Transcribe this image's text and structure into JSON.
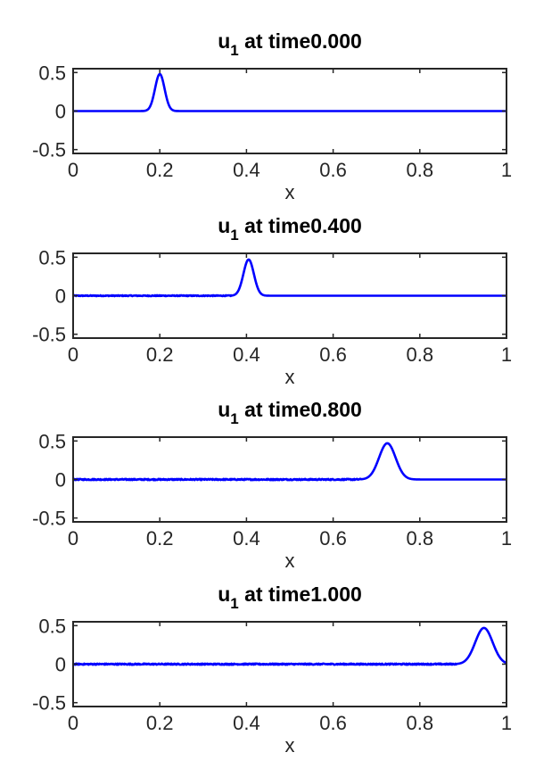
{
  "chart_data": [
    {
      "type": "line",
      "title_base": "u",
      "title_sub": "1",
      "title_rest": " at time0.000",
      "xlabel": "x",
      "ylabel": "",
      "xlim": [
        0,
        1
      ],
      "ylim": [
        -0.55,
        0.55
      ],
      "xticks": [
        0,
        0.2,
        0.4,
        0.6,
        0.8,
        1
      ],
      "xtick_labels": [
        "0",
        "0.2",
        "0.4",
        "0.6",
        "0.8",
        "1"
      ],
      "yticks": [
        0.5,
        0,
        -0.5
      ],
      "ytick_labels": [
        "0.5",
        "0",
        "-0.5"
      ],
      "grid": false,
      "series": [
        {
          "color": "#0000ff",
          "pulse": {
            "center": 0.2,
            "amplitude": 0.48,
            "width": 0.011
          },
          "noise": 0.0
        }
      ]
    },
    {
      "type": "line",
      "title_base": "u",
      "title_sub": "1",
      "title_rest": " at time0.400",
      "xlabel": "x",
      "ylabel": "",
      "xlim": [
        0,
        1
      ],
      "ylim": [
        -0.55,
        0.55
      ],
      "xticks": [
        0,
        0.2,
        0.4,
        0.6,
        0.8,
        1
      ],
      "xtick_labels": [
        "0",
        "0.2",
        "0.4",
        "0.6",
        "0.8",
        "1"
      ],
      "yticks": [
        0.5,
        0,
        -0.5
      ],
      "ytick_labels": [
        "0.5",
        "0",
        "-0.5"
      ],
      "grid": false,
      "series": [
        {
          "color": "#0000ff",
          "pulse": {
            "center": 0.405,
            "amplitude": 0.47,
            "width": 0.012
          },
          "noise": 0.006
        }
      ]
    },
    {
      "type": "line",
      "title_base": "u",
      "title_sub": "1",
      "title_rest": " at time0.800",
      "xlabel": "x",
      "ylabel": "",
      "xlim": [
        0,
        1
      ],
      "ylim": [
        -0.55,
        0.55
      ],
      "xticks": [
        0,
        0.2,
        0.4,
        0.6,
        0.8,
        1
      ],
      "xtick_labels": [
        "0",
        "0.2",
        "0.4",
        "0.6",
        "0.8",
        "1"
      ],
      "yticks": [
        0.5,
        0,
        -0.5
      ],
      "ytick_labels": [
        "0.5",
        "0",
        "-0.5"
      ],
      "grid": false,
      "series": [
        {
          "color": "#0000ff",
          "pulse": {
            "center": 0.725,
            "amplitude": 0.47,
            "width": 0.019
          },
          "noise": 0.008
        }
      ]
    },
    {
      "type": "line",
      "title_base": "u",
      "title_sub": "1",
      "title_rest": " at time1.000",
      "xlabel": "x",
      "ylabel": "",
      "xlim": [
        0,
        1
      ],
      "ylim": [
        -0.55,
        0.55
      ],
      "xticks": [
        0,
        0.2,
        0.4,
        0.6,
        0.8,
        1
      ],
      "xtick_labels": [
        "0",
        "0.2",
        "0.4",
        "0.6",
        "0.8",
        "1"
      ],
      "yticks": [
        0.5,
        0,
        -0.5
      ],
      "ytick_labels": [
        "0.5",
        "0",
        "-0.5"
      ],
      "grid": false,
      "series": [
        {
          "color": "#0000ff",
          "pulse": {
            "center": 0.948,
            "amplitude": 0.47,
            "width": 0.02
          },
          "noise": 0.008
        }
      ]
    }
  ]
}
